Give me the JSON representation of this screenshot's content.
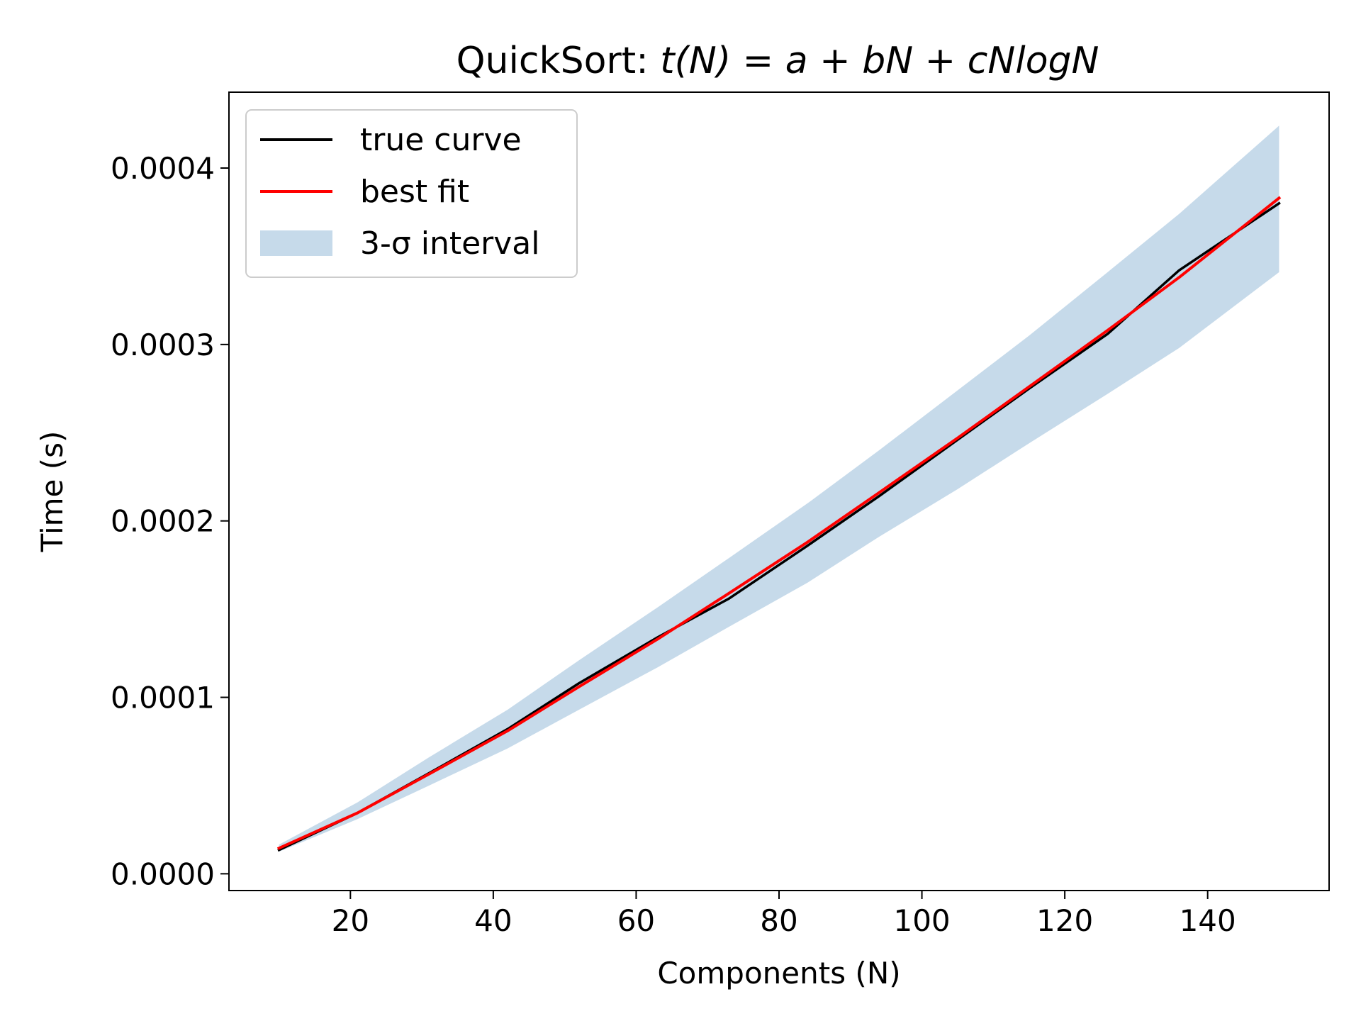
{
  "chart_data": {
    "type": "line",
    "title": {
      "prefix": "QuickSort: ",
      "formula": "t(N) = a + bN + cNlogN"
    },
    "xlabel": "Components (N)",
    "ylabel": "Time (s)",
    "xlim": [
      3.0,
      157.0
    ],
    "ylim": [
      -9.5e-06,
      0.000443
    ],
    "xticks": [
      20,
      40,
      60,
      80,
      100,
      120,
      140
    ],
    "xtick_labels": [
      "20",
      "40",
      "60",
      "80",
      "100",
      "120",
      "140"
    ],
    "yticks": [
      0.0,
      0.0001,
      0.0002,
      0.0003,
      0.0004
    ],
    "ytick_labels": [
      "0.0000",
      "0.0001",
      "0.0002",
      "0.0003",
      "0.0004"
    ],
    "grid": false,
    "legend": {
      "position": "upper-left",
      "entries": [
        {
          "label": "true curve",
          "kind": "line",
          "color": "#000000"
        },
        {
          "label": "best fit",
          "kind": "line",
          "color": "#ff0000"
        },
        {
          "label": "3-σ interval",
          "kind": "patch",
          "color": "#c6daea"
        }
      ]
    },
    "series": [
      {
        "name": "true curve",
        "color": "#000000",
        "x": [
          10,
          21,
          31,
          42,
          52,
          63,
          73,
          84,
          94,
          105,
          115,
          126,
          136,
          150
        ],
        "y": [
          1.35e-05,
          3.45e-05,
          5.7e-05,
          8.2e-05,
          0.000108,
          0.000134,
          0.000156,
          0.000186,
          0.000214,
          0.000246,
          0.000275,
          0.000306,
          0.000342,
          0.00038
        ]
      },
      {
        "name": "best fit",
        "color": "#ff0000",
        "x": [
          10,
          21,
          31,
          42,
          52,
          63,
          73,
          84,
          94,
          105,
          115,
          126,
          136,
          150
        ],
        "y": [
          1.45e-05,
          3.45e-05,
          5.65e-05,
          8.1e-05,
          0.000106,
          0.000133,
          0.000159,
          0.000188,
          0.000216,
          0.000247,
          0.000276,
          0.000308,
          0.000338,
          0.000383
        ]
      }
    ],
    "interval": {
      "name": "3-σ interval",
      "color": "#c6daea",
      "x": [
        10,
        21,
        31,
        42,
        52,
        63,
        73,
        84,
        94,
        105,
        115,
        126,
        136,
        150
      ],
      "lower": [
        1.25e-05,
        3.1e-05,
        5e-05,
        7.1e-05,
        9.3e-05,
        0.000117,
        0.00014,
        0.000165,
        0.000191,
        0.000218,
        0.000244,
        0.000272,
        0.000298,
        0.000341
      ],
      "upper": [
        1.65e-05,
        4.05e-05,
        6.6e-05,
        9.3e-05,
        0.000121,
        0.000151,
        0.000179,
        0.00021,
        0.00024,
        0.000274,
        0.000305,
        0.000341,
        0.000374,
        0.000424
      ]
    }
  }
}
